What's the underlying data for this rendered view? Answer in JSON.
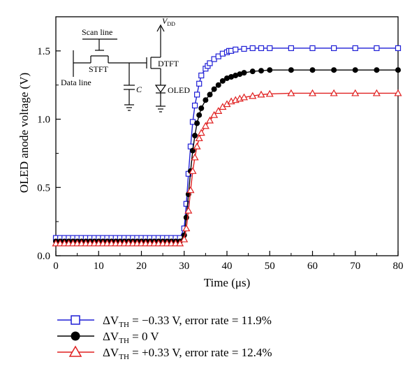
{
  "chart_data": {
    "type": "line",
    "xlabel": "Time (μs)",
    "ylabel": "OLED anode voltage (V)",
    "xlim": [
      0,
      80
    ],
    "ylim": [
      0,
      1.75
    ],
    "xticks": [
      "0",
      "10",
      "20",
      "30",
      "40",
      "50",
      "60",
      "70",
      "80"
    ],
    "yticks": [
      "0.0",
      "0.5",
      "1.0",
      "1.5"
    ],
    "grid": false,
    "legend_position": "bottom",
    "series": [
      {
        "name": "ΔV_TH = −0.33 V, error rate = 11.9%",
        "marker": "open-square",
        "color": "#1f1fd6",
        "x": [
          0,
          1,
          2,
          3,
          4,
          5,
          6,
          7,
          8,
          9,
          10,
          11,
          12,
          13,
          14,
          15,
          16,
          17,
          18,
          19,
          20,
          21,
          22,
          23,
          24,
          25,
          26,
          27,
          28,
          29,
          30,
          30.5,
          31,
          31.5,
          32,
          32.5,
          33,
          33.5,
          34,
          35,
          35.5,
          36,
          37,
          38,
          39,
          40,
          40.5,
          41,
          42,
          44,
          46,
          48,
          50,
          55,
          60,
          65,
          70,
          75,
          80
        ],
        "y": [
          0.13,
          0.13,
          0.13,
          0.13,
          0.13,
          0.13,
          0.13,
          0.13,
          0.13,
          0.13,
          0.13,
          0.13,
          0.13,
          0.13,
          0.13,
          0.13,
          0.13,
          0.13,
          0.13,
          0.13,
          0.13,
          0.13,
          0.13,
          0.13,
          0.13,
          0.13,
          0.13,
          0.13,
          0.13,
          0.13,
          0.2,
          0.38,
          0.6,
          0.8,
          0.98,
          1.1,
          1.18,
          1.26,
          1.32,
          1.37,
          1.39,
          1.41,
          1.44,
          1.46,
          1.48,
          1.49,
          1.5,
          1.5,
          1.51,
          1.515,
          1.52,
          1.52,
          1.52,
          1.52,
          1.52,
          1.52,
          1.52,
          1.52,
          1.52
        ]
      },
      {
        "name": "ΔV_TH = 0 V",
        "marker": "filled-circle",
        "color": "#000000",
        "x": [
          0,
          1,
          2,
          3,
          4,
          5,
          6,
          7,
          8,
          9,
          10,
          11,
          12,
          13,
          14,
          15,
          16,
          17,
          18,
          19,
          20,
          21,
          22,
          23,
          24,
          25,
          26,
          27,
          28,
          29,
          30,
          30.5,
          31,
          31.5,
          32,
          32.5,
          33,
          33.5,
          34,
          35,
          36,
          37,
          38,
          39,
          40,
          41,
          42,
          43,
          44,
          46,
          48,
          50,
          55,
          60,
          65,
          70,
          75,
          80
        ],
        "y": [
          0.105,
          0.105,
          0.105,
          0.105,
          0.105,
          0.105,
          0.105,
          0.105,
          0.105,
          0.105,
          0.105,
          0.105,
          0.105,
          0.105,
          0.105,
          0.105,
          0.105,
          0.105,
          0.105,
          0.105,
          0.105,
          0.105,
          0.105,
          0.105,
          0.105,
          0.105,
          0.105,
          0.105,
          0.105,
          0.105,
          0.15,
          0.28,
          0.45,
          0.62,
          0.77,
          0.88,
          0.97,
          1.03,
          1.08,
          1.14,
          1.18,
          1.22,
          1.25,
          1.28,
          1.3,
          1.31,
          1.32,
          1.33,
          1.34,
          1.35,
          1.355,
          1.36,
          1.36,
          1.36,
          1.36,
          1.36,
          1.36,
          1.36
        ]
      },
      {
        "name": "ΔV_TH = +0.33 V, error rate = 12.4%",
        "marker": "open-triangle",
        "color": "#e02020",
        "x": [
          0,
          1,
          2,
          3,
          4,
          5,
          6,
          7,
          8,
          9,
          10,
          11,
          12,
          13,
          14,
          15,
          16,
          17,
          18,
          19,
          20,
          21,
          22,
          23,
          24,
          25,
          26,
          27,
          28,
          29,
          30,
          30.5,
          31,
          31.5,
          32,
          32.5,
          33,
          33.5,
          34,
          35,
          36,
          37,
          38,
          39,
          40,
          41,
          42,
          43,
          44,
          46,
          48,
          50,
          55,
          60,
          65,
          70,
          75,
          80
        ],
        "y": [
          0.09,
          0.09,
          0.09,
          0.09,
          0.09,
          0.09,
          0.09,
          0.09,
          0.09,
          0.09,
          0.09,
          0.09,
          0.09,
          0.09,
          0.09,
          0.09,
          0.09,
          0.09,
          0.09,
          0.09,
          0.09,
          0.09,
          0.09,
          0.09,
          0.09,
          0.09,
          0.09,
          0.09,
          0.09,
          0.09,
          0.12,
          0.2,
          0.33,
          0.48,
          0.62,
          0.72,
          0.8,
          0.86,
          0.9,
          0.95,
          0.99,
          1.03,
          1.06,
          1.09,
          1.11,
          1.13,
          1.14,
          1.15,
          1.16,
          1.17,
          1.18,
          1.185,
          1.19,
          1.19,
          1.19,
          1.19,
          1.19,
          1.19
        ]
      }
    ],
    "inset_labels": {
      "vdd": "V",
      "vdd_sub": "DD",
      "scan_line": "Scan line",
      "stft": "STFT",
      "data_line": "Data line",
      "dtft": "DTFT",
      "capacitor": "C",
      "oled": "OLED"
    }
  },
  "legend": [
    {
      "prefix": "ΔV",
      "sub": "TH",
      "suffix": " = −0.33 V, error rate = 11.9%"
    },
    {
      "prefix": "ΔV",
      "sub": "TH",
      "suffix": " = 0 V"
    },
    {
      "prefix": "ΔV",
      "sub": "TH",
      "suffix": " = +0.33 V, error rate = 12.4%"
    }
  ]
}
